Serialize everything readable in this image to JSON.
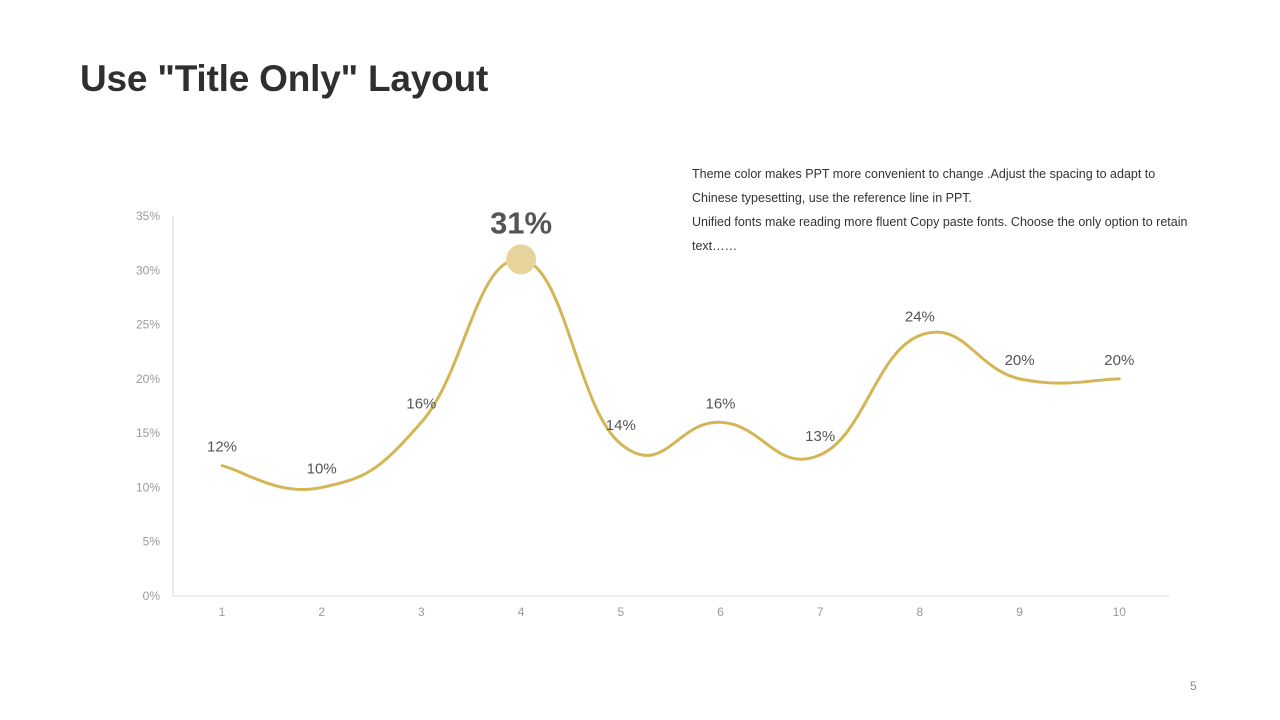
{
  "slide": {
    "title": "Use \"Title Only\" Layout",
    "page_number": "5",
    "description": [
      "Theme  color makes PPT more convenient  to change .Adjust  the spacing to adapt to Chinese  typesetting, use the reference line in PPT.",
      "Unified  fonts make reading more fluent Copy paste fonts. Choose the only option to retain text……"
    ]
  },
  "colors": {
    "line": "#d4b656",
    "highlight": "#e6d49c",
    "axis": "#d9d9d9"
  },
  "chart_data": {
    "type": "line",
    "smooth": true,
    "categories": [
      "1",
      "2",
      "3",
      "4",
      "5",
      "6",
      "7",
      "8",
      "9",
      "10"
    ],
    "values": [
      12,
      10,
      16,
      31,
      14,
      16,
      13,
      24,
      20,
      20
    ],
    "data_labels": [
      "12%",
      "10%",
      "16%",
      "31%",
      "14%",
      "16%",
      "13%",
      "24%",
      "20%",
      "20%"
    ],
    "highlight_index": 3,
    "ylim": [
      0,
      35
    ],
    "yticks": [
      0,
      5,
      10,
      15,
      20,
      25,
      30,
      35
    ],
    "ytick_labels": [
      "0%",
      "5%",
      "10%",
      "15%",
      "20%",
      "25%",
      "30%",
      "35%"
    ],
    "grid": false,
    "legend": "none"
  }
}
